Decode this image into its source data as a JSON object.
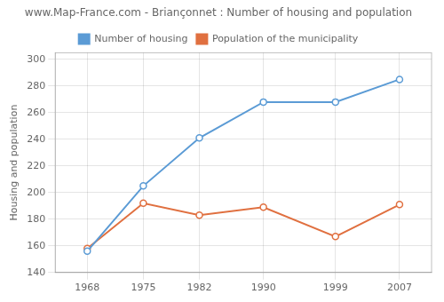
{
  "chart_data": {
    "type": "line",
    "title": "www.Map-France.com - Briançonnet : Number of housing and population",
    "ylabel": "Housing and population",
    "x": [
      1968,
      1975,
      1982,
      1990,
      1999,
      2007
    ],
    "series": [
      {
        "name": "Number of housing",
        "color": "#5b9bd5",
        "marker": "circle",
        "values": [
          156,
          205,
          241,
          268,
          268,
          285
        ]
      },
      {
        "name": "Population of the municipality",
        "color": "#e07040",
        "marker": "circle",
        "values": [
          158,
          192,
          183,
          189,
          167,
          191
        ]
      }
    ],
    "xlim": [
      1964,
      2011
    ],
    "xticks": [
      1968,
      1975,
      1982,
      1990,
      1999,
      2007
    ],
    "ylim": [
      140,
      305
    ],
    "yticks": [
      140,
      160,
      180,
      200,
      220,
      240,
      260,
      280,
      300
    ],
    "grid": true,
    "legend": "top"
  }
}
